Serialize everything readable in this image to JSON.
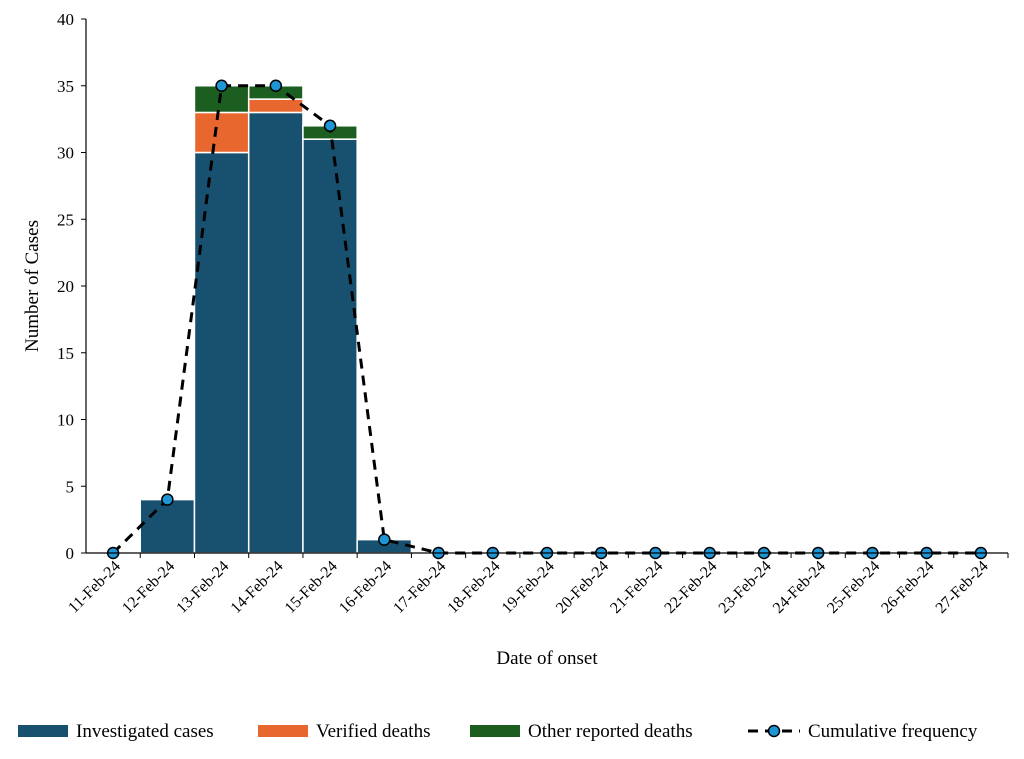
{
  "chart_data": {
    "type": "bar",
    "stacked": true,
    "title": "",
    "xlabel": "Date of onset",
    "ylabel": "Number of Cases",
    "ylim": [
      0,
      40
    ],
    "yticks": [
      0,
      5,
      10,
      15,
      20,
      25,
      30,
      35,
      40
    ],
    "grid": false,
    "legend_position": "bottom",
    "categories": [
      "11-Feb-24",
      "12-Feb-24",
      "13-Feb-24",
      "14-Feb-24",
      "15-Feb-24",
      "16-Feb-24",
      "17-Feb-24",
      "18-Feb-24",
      "19-Feb-24",
      "20-Feb-24",
      "21-Feb-24",
      "22-Feb-24",
      "23-Feb-24",
      "24-Feb-24",
      "25-Feb-24",
      "26-Feb-24",
      "27-Feb-24"
    ],
    "series": [
      {
        "name": "Investigated cases",
        "kind": "bar",
        "color": "#18506f",
        "values": [
          0,
          4,
          30,
          33,
          31,
          1,
          0,
          0,
          0,
          0,
          0,
          0,
          0,
          0,
          0,
          0,
          0
        ]
      },
      {
        "name": "Verified deaths",
        "kind": "bar",
        "color": "#e8672e",
        "values": [
          0,
          0,
          3,
          1,
          0,
          0,
          0,
          0,
          0,
          0,
          0,
          0,
          0,
          0,
          0,
          0,
          0
        ]
      },
      {
        "name": "Other reported deaths",
        "kind": "bar",
        "color": "#1b5e20",
        "values": [
          0,
          0,
          2,
          1,
          1,
          0,
          0,
          0,
          0,
          0,
          0,
          0,
          0,
          0,
          0,
          0,
          0
        ]
      },
      {
        "name": "Cumulative frequency",
        "kind": "line",
        "color": "#000000",
        "marker_color": "#1e96d6",
        "values": [
          0,
          4,
          35,
          35,
          32,
          1,
          0,
          0,
          0,
          0,
          0,
          0,
          0,
          0,
          0,
          0,
          0
        ]
      }
    ]
  }
}
